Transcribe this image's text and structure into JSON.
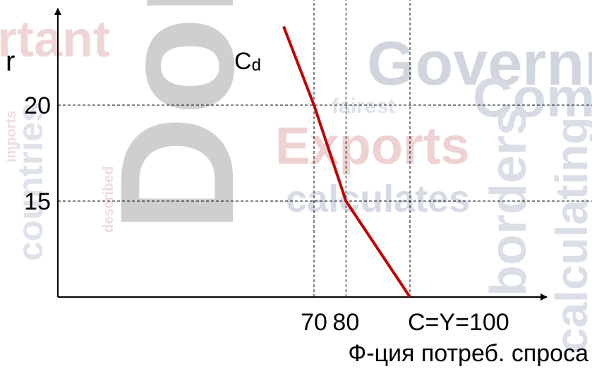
{
  "chart_data": {
    "type": "line",
    "ylabel": "r",
    "curve_label": "Cd",
    "curve_label_main": "C",
    "curve_label_sub": "d",
    "xlabel": "Ф-ция потреб. спроса",
    "x_ticks": [
      {
        "value": 70,
        "label": "70"
      },
      {
        "value": 80,
        "label": "80"
      },
      {
        "value": 100,
        "label": "C=Y=100"
      }
    ],
    "y_ticks": [
      {
        "value": 15,
        "label": "15"
      },
      {
        "value": 20,
        "label": "20"
      }
    ],
    "series": [
      {
        "x": [
          60.5,
          70,
          80,
          100
        ],
        "y": [
          24.1,
          20,
          15,
          10
        ]
      }
    ],
    "guide_lines_x": [
      70,
      80,
      100
    ],
    "guide_lines_y": [
      15,
      20
    ],
    "grid": false,
    "colors": {
      "curve": "#c00000",
      "axes": "#000000",
      "guides": "#000000",
      "text": "#000000"
    }
  },
  "background_words": [
    {
      "text": "Governm",
      "color": "#5b6b8a"
    },
    {
      "text": "rtant",
      "color": "#c86a6a"
    },
    {
      "text": "Exports",
      "color": "#c05a5a"
    },
    {
      "text": "calculates",
      "color": "#6a7a9a"
    },
    {
      "text": "Dom",
      "color": "#555555"
    },
    {
      "text": "Com",
      "color": "#6a7a9a"
    },
    {
      "text": "borders",
      "color": "#7a8aa6"
    },
    {
      "text": "calculating",
      "color": "#7a8aa6"
    },
    {
      "text": "fairest",
      "color": "#8a9ab6"
    },
    {
      "text": "countries",
      "color": "#8a9ab6"
    },
    {
      "text": "described",
      "color": "#c08080"
    },
    {
      "text": "imports",
      "color": "#c08080"
    }
  ]
}
